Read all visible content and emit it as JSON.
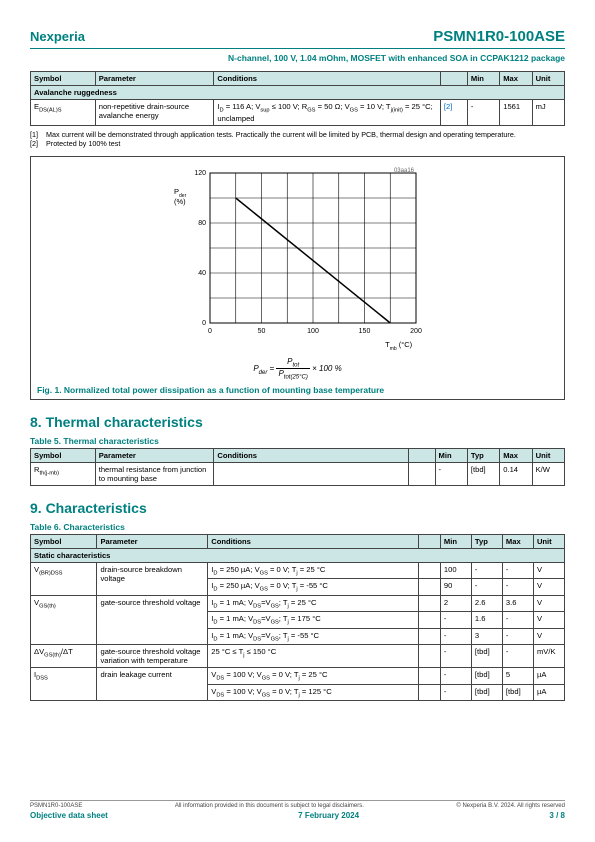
{
  "header": {
    "brand": "Nexperia",
    "part": "PSMN1R0-100ASE"
  },
  "subhead": "N-channel, 100 V, 1.04 mOhm, MOSFET with enhanced SOA in CCPAK1212 package",
  "table_top": {
    "headers": [
      "Symbol",
      "Parameter",
      "Conditions",
      "",
      "Min",
      "Max",
      "Unit"
    ],
    "section": "Avalanche ruggedness",
    "row": {
      "symbol_html": "E<sub>DS(AL)S</sub>",
      "parameter": "non-repetitive drain-source avalanche energy",
      "conditions_html": "I<sub>D</sub> = 116 A; V<sub>sup</sub> ≤ 100 V; R<sub>GS</sub> = 50 Ω; V<sub>GS</sub> = 10 V; T<sub>j(init)</sub> = 25 °C; unclamped",
      "ref": "[2]",
      "min": "-",
      "max": "1561",
      "unit": "mJ"
    }
  },
  "notes": [
    {
      "idx": "[1]",
      "text": "Max current will be demonstrated through application tests. Practically the current will be limited by PCB, thermal design and operating temperature."
    },
    {
      "idx": "[2]",
      "text": "Protected by 100% test"
    }
  ],
  "figure1": {
    "id_label": "03aa16",
    "x_label_html": "T<sub>mb</sub> (°C)",
    "y_label_html": "P<sub>der</sub> (%)",
    "formula_html": "P<sub>der</sub> = <span style='display:inline-block;vertical-align:middle;text-align:center;'><span style='display:block;border-bottom:1px solid #000;padding:0 2px;'>P<sub>tot</sub></span><span style='display:block;padding:0 2px;'>P<sub>tot(25°C)</sub></span></span> × 100 %",
    "xlim": [
      0,
      200
    ],
    "ylim": [
      0,
      120
    ],
    "xticks": [
      0,
      50,
      100,
      150,
      200
    ],
    "yticks": [
      0,
      40,
      80,
      120
    ],
    "yminor": [
      20,
      60,
      100
    ],
    "xminor": [
      25,
      75,
      125,
      175
    ],
    "line": [
      {
        "x": 25,
        "y": 100
      },
      {
        "x": 175,
        "y": 0
      }
    ],
    "axis_color": "#000",
    "grid_color": "#000",
    "line_color": "#000",
    "bg": "#ffffff",
    "caption": "Fig. 1.   Normalized total power dissipation as a function of mounting base temperature"
  },
  "section8": {
    "title": "8.  Thermal characteristics",
    "table_title": "Table 5. Thermal characteristics",
    "headers": [
      "Symbol",
      "Parameter",
      "Conditions",
      "",
      "Min",
      "Typ",
      "Max",
      "Unit"
    ],
    "row": {
      "symbol_html": "R<sub>th(j-mb)</sub>",
      "parameter": "thermal resistance from junction to mounting base",
      "conditions": "",
      "ref": "",
      "min": "-",
      "typ": "[tbd]",
      "max": "0.14",
      "unit": "K/W"
    }
  },
  "section9": {
    "title": "9.  Characteristics",
    "table_title": "Table 6. Characteristics",
    "headers": [
      "Symbol",
      "Parameter",
      "Conditions",
      "",
      "Min",
      "Typ",
      "Max",
      "Unit"
    ],
    "section": "Static characteristics",
    "rows": [
      {
        "sym": "V<sub>(BR)DSS</sub>",
        "param": "drain-source breakdown voltage",
        "cond": "I<sub>D</sub> = 250 µA; V<sub>GS</sub> = 0 V; T<sub>j</sub> = 25 °C",
        "ref": "",
        "min": "100",
        "typ": "-",
        "max": "-",
        "unit": "V",
        "rs": 2
      },
      {
        "sym": "",
        "param": "",
        "cond": "I<sub>D</sub> = 250 µA; V<sub>GS</sub> = 0 V; T<sub>j</sub> = -55 °C",
        "ref": "",
        "min": "90",
        "typ": "-",
        "max": "-",
        "unit": "V"
      },
      {
        "sym": "V<sub>GS(th)</sub>",
        "param": "gate-source threshold voltage",
        "cond": "I<sub>D</sub> = 1 mA; V<sub>DS</sub>=V<sub>GS</sub>; T<sub>j</sub> = 25 °C",
        "ref": "",
        "min": "2",
        "typ": "2.6",
        "max": "3.6",
        "unit": "V",
        "rs": 3
      },
      {
        "sym": "",
        "param": "",
        "cond": "I<sub>D</sub> = 1 mA; V<sub>DS</sub>=V<sub>GS</sub>; T<sub>j</sub> = 175 °C",
        "ref": "",
        "min": "-",
        "typ": "1.6",
        "max": "-",
        "unit": "V"
      },
      {
        "sym": "",
        "param": "",
        "cond": "I<sub>D</sub> = 1 mA; V<sub>DS</sub>=V<sub>GS</sub>; T<sub>j</sub> = -55 °C",
        "ref": "",
        "min": "-",
        "typ": "3",
        "max": "-",
        "unit": "V"
      },
      {
        "sym": "ΔV<sub>GS(th)</sub>/ΔT",
        "param": "gate-source threshold voltage variation with temperature",
        "cond": "25 °C ≤  T<sub>j</sub> ≤  150 °C",
        "ref": "",
        "min": "-",
        "typ": "[tbd]",
        "max": "-",
        "unit": "mV/K",
        "rs": 1
      },
      {
        "sym": "I<sub>DSS</sub>",
        "param": "drain leakage current",
        "cond": "V<sub>DS</sub> = 100 V; V<sub>GS</sub> = 0 V; T<sub>j</sub> = 25 °C",
        "ref": "",
        "min": "-",
        "typ": "[tbd]",
        "max": "5",
        "unit": "µA",
        "rs": 2
      },
      {
        "sym": "",
        "param": "",
        "cond": "V<sub>DS</sub> = 100 V; V<sub>GS</sub> = 0 V; T<sub>j</sub> = 125 °C",
        "ref": "",
        "min": "-",
        "typ": "[tbd]",
        "max": "[tbd]",
        "unit": "µA"
      }
    ]
  },
  "footer": {
    "left1": "PSMN1R0-100ASE",
    "mid1": "All information provided in this document is subject to legal disclaimers.",
    "right1": "© Nexperia B.V. 2024. All rights reserved",
    "left2": "Objective data sheet",
    "mid2": "7 February 2024",
    "right2": "3 / 8"
  },
  "colwidths": {
    "t1": [
      60,
      110,
      210,
      25,
      30,
      30,
      30
    ],
    "t5": [
      60,
      110,
      180,
      25,
      30,
      30,
      30,
      30
    ],
    "t6": [
      60,
      100,
      190,
      20,
      28,
      28,
      28,
      28
    ]
  }
}
